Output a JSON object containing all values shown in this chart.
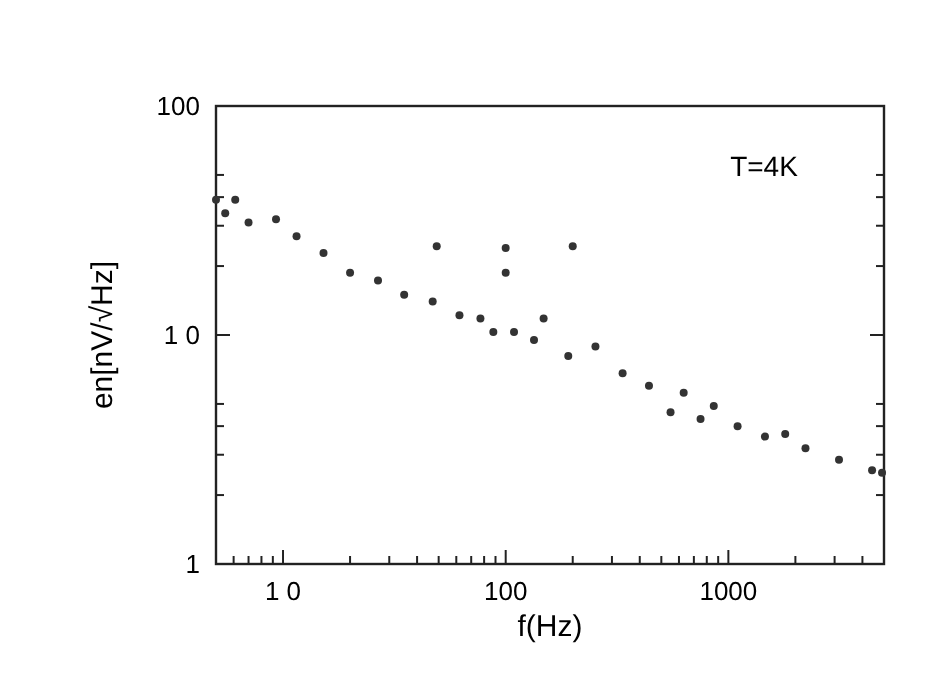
{
  "chart_data": {
    "type": "scatter",
    "xlabel": "f(Hz)",
    "ylabel": "en[nV/√Hz]",
    "annotations": [
      "T=4K"
    ],
    "log": "xy",
    "marker": "circle",
    "grid": false,
    "xlim": [
      5,
      5000
    ],
    "ylim": [
      1,
      100
    ],
    "xticks": [
      {
        "value": 6,
        "label": null
      },
      {
        "value": 7,
        "label": null
      },
      {
        "value": 8,
        "label": null
      },
      {
        "value": 9,
        "label": null
      },
      {
        "value": 10,
        "label": "1 0"
      },
      {
        "value": 20,
        "label": null
      },
      {
        "value": 30,
        "label": null
      },
      {
        "value": 40,
        "label": null
      },
      {
        "value": 50,
        "label": null
      },
      {
        "value": 60,
        "label": null
      },
      {
        "value": 70,
        "label": null
      },
      {
        "value": 80,
        "label": null
      },
      {
        "value": 90,
        "label": null
      },
      100,
      {
        "value": 200,
        "label": null
      },
      {
        "value": 300,
        "label": null
      },
      {
        "value": 400,
        "label": null
      },
      {
        "value": 500,
        "label": null
      },
      {
        "value": 600,
        "label": null
      },
      {
        "value": 700,
        "label": null
      },
      {
        "value": 800,
        "label": null
      },
      {
        "value": 900,
        "label": null
      },
      1000,
      {
        "value": 2000,
        "label": null
      },
      {
        "value": 3000,
        "label": null
      },
      {
        "value": 4000,
        "label": null
      }
    ],
    "yticks": [
      1,
      {
        "value": 2,
        "label": null
      },
      {
        "value": 3,
        "label": null
      },
      {
        "value": 4,
        "label": null
      },
      {
        "value": 5,
        "label": null
      },
      {
        "value": 10,
        "label": "1 0"
      },
      {
        "value": 20,
        "label": null
      },
      {
        "value": 30,
        "label": null
      },
      {
        "value": 40,
        "label": null
      },
      {
        "value": 50,
        "label": null
      },
      100
    ],
    "series": [
      {
        "color": "#333333",
        "x": [
          5,
          5.5,
          6.1,
          7,
          9.3,
          11.5,
          15.2,
          20,
          26.7,
          35,
          47,
          49,
          62,
          77,
          88,
          100,
          100,
          109,
          134,
          148,
          191,
          200,
          253,
          335,
          440,
          550,
          630,
          750,
          860,
          1100,
          1460,
          1800,
          2220,
          3140,
          4420,
          4900
        ],
        "values": [
          39,
          34,
          39,
          31,
          32,
          27,
          22.8,
          18.7,
          17.3,
          15,
          14,
          24.4,
          12.2,
          11.8,
          10.3,
          24,
          18.7,
          10.3,
          9.5,
          11.8,
          8.1,
          24.4,
          8.9,
          6.8,
          6,
          4.6,
          5.6,
          4.3,
          4.9,
          4,
          3.6,
          3.7,
          3.2,
          2.85,
          2.57,
          2.5
        ]
      }
    ]
  }
}
